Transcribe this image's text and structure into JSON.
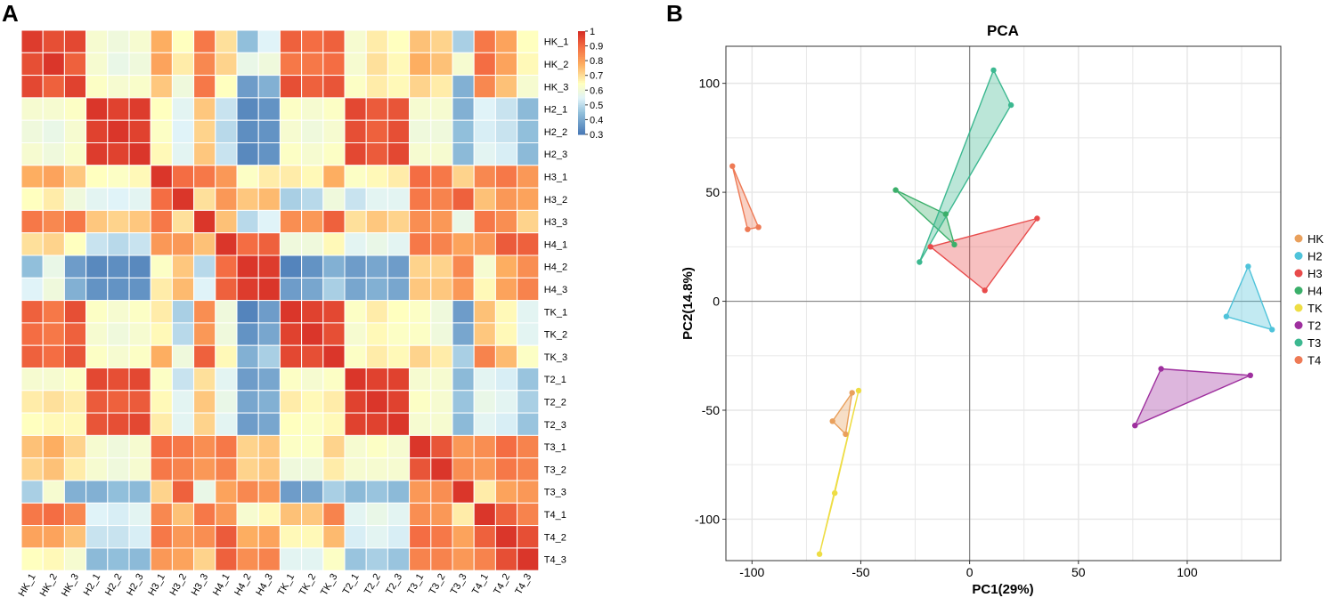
{
  "chart_data": [
    {
      "panel": "A",
      "type": "heatmap",
      "title": "",
      "labels": [
        "HK_1",
        "HK_2",
        "HK_3",
        "H2_1",
        "H2_2",
        "H2_3",
        "H3_1",
        "H3_2",
        "H3_3",
        "H4_1",
        "H4_2",
        "H4_3",
        "TK_1",
        "TK_2",
        "TK_3",
        "T2_1",
        "T2_2",
        "T2_3",
        "T3_1",
        "T3_2",
        "T3_3",
        "T4_1",
        "T4_2",
        "T4_3"
      ],
      "colorbar": {
        "ticks": [
          "1",
          "0.9",
          "0.8",
          "0.7",
          "0.6",
          "0.5",
          "0.4",
          "0.3"
        ],
        "range": [
          0.3,
          1
        ]
      },
      "matrix": [
        [
          0.98,
          0.95,
          0.96,
          0.62,
          0.6,
          0.62,
          0.78,
          0.65,
          0.88,
          0.7,
          0.45,
          0.55,
          0.92,
          0.9,
          0.92,
          0.62,
          0.68,
          0.65,
          0.75,
          0.72,
          0.48,
          0.88,
          0.8,
          0.65
        ],
        [
          0.95,
          0.99,
          0.92,
          0.62,
          0.58,
          0.6,
          0.8,
          0.68,
          0.85,
          0.72,
          0.58,
          0.6,
          0.88,
          0.88,
          0.9,
          0.62,
          0.7,
          0.66,
          0.78,
          0.75,
          0.62,
          0.9,
          0.8,
          0.66
        ],
        [
          0.96,
          0.92,
          0.97,
          0.64,
          0.62,
          0.63,
          0.74,
          0.6,
          0.88,
          0.65,
          0.38,
          0.42,
          0.95,
          0.92,
          0.94,
          0.64,
          0.68,
          0.66,
          0.72,
          0.68,
          0.42,
          0.85,
          0.75,
          0.62
        ],
        [
          0.62,
          0.62,
          0.64,
          0.99,
          0.97,
          0.98,
          0.65,
          0.56,
          0.74,
          0.52,
          0.34,
          0.36,
          0.64,
          0.62,
          0.64,
          0.96,
          0.93,
          0.94,
          0.62,
          0.62,
          0.42,
          0.55,
          0.52,
          0.44
        ],
        [
          0.6,
          0.58,
          0.62,
          0.97,
          0.99,
          0.97,
          0.64,
          0.55,
          0.72,
          0.5,
          0.35,
          0.36,
          0.62,
          0.6,
          0.62,
          0.95,
          0.92,
          0.95,
          0.6,
          0.6,
          0.45,
          0.54,
          0.52,
          0.45
        ],
        [
          0.62,
          0.6,
          0.63,
          0.98,
          0.97,
          0.99,
          0.66,
          0.56,
          0.74,
          0.52,
          0.34,
          0.36,
          0.64,
          0.62,
          0.64,
          0.96,
          0.93,
          0.96,
          0.62,
          0.62,
          0.44,
          0.56,
          0.54,
          0.44
        ],
        [
          0.78,
          0.8,
          0.74,
          0.65,
          0.64,
          0.66,
          0.99,
          0.9,
          0.88,
          0.82,
          0.64,
          0.68,
          0.68,
          0.66,
          0.78,
          0.64,
          0.66,
          0.68,
          0.9,
          0.88,
          0.72,
          0.85,
          0.88,
          0.82
        ],
        [
          0.65,
          0.68,
          0.6,
          0.56,
          0.55,
          0.56,
          0.9,
          0.99,
          0.7,
          0.82,
          0.74,
          0.76,
          0.48,
          0.5,
          0.6,
          0.52,
          0.56,
          0.56,
          0.88,
          0.86,
          0.92,
          0.75,
          0.82,
          0.8
        ],
        [
          0.88,
          0.85,
          0.88,
          0.74,
          0.72,
          0.74,
          0.88,
          0.7,
          0.99,
          0.75,
          0.5,
          0.55,
          0.84,
          0.82,
          0.92,
          0.7,
          0.74,
          0.72,
          0.84,
          0.82,
          0.58,
          0.88,
          0.84,
          0.72
        ],
        [
          0.7,
          0.72,
          0.65,
          0.52,
          0.5,
          0.52,
          0.82,
          0.82,
          0.75,
          0.99,
          0.9,
          0.92,
          0.6,
          0.6,
          0.66,
          0.56,
          0.58,
          0.56,
          0.88,
          0.86,
          0.8,
          0.82,
          0.93,
          0.92
        ],
        [
          0.45,
          0.58,
          0.38,
          0.34,
          0.35,
          0.34,
          0.64,
          0.74,
          0.5,
          0.9,
          0.99,
          0.98,
          0.33,
          0.36,
          0.42,
          0.38,
          0.4,
          0.38,
          0.72,
          0.72,
          0.85,
          0.62,
          0.78,
          0.84
        ],
        [
          0.55,
          0.6,
          0.42,
          0.36,
          0.36,
          0.36,
          0.68,
          0.76,
          0.55,
          0.92,
          0.98,
          0.99,
          0.38,
          0.4,
          0.48,
          0.4,
          0.42,
          0.4,
          0.74,
          0.74,
          0.82,
          0.66,
          0.8,
          0.86
        ],
        [
          0.92,
          0.88,
          0.95,
          0.64,
          0.62,
          0.64,
          0.68,
          0.48,
          0.84,
          0.6,
          0.33,
          0.38,
          0.99,
          0.97,
          0.96,
          0.64,
          0.68,
          0.65,
          0.64,
          0.6,
          0.38,
          0.75,
          0.66,
          0.56
        ],
        [
          0.9,
          0.88,
          0.92,
          0.62,
          0.6,
          0.62,
          0.66,
          0.5,
          0.82,
          0.6,
          0.36,
          0.4,
          0.97,
          0.99,
          0.95,
          0.62,
          0.66,
          0.64,
          0.64,
          0.6,
          0.4,
          0.74,
          0.66,
          0.56
        ],
        [
          0.92,
          0.9,
          0.94,
          0.64,
          0.62,
          0.64,
          0.78,
          0.6,
          0.92,
          0.66,
          0.42,
          0.48,
          0.96,
          0.95,
          0.99,
          0.64,
          0.68,
          0.66,
          0.72,
          0.68,
          0.48,
          0.86,
          0.76,
          0.64
        ],
        [
          0.62,
          0.62,
          0.64,
          0.96,
          0.95,
          0.96,
          0.64,
          0.52,
          0.7,
          0.56,
          0.38,
          0.4,
          0.64,
          0.62,
          0.64,
          0.99,
          0.97,
          0.97,
          0.62,
          0.62,
          0.44,
          0.56,
          0.54,
          0.46
        ],
        [
          0.68,
          0.7,
          0.68,
          0.93,
          0.92,
          0.93,
          0.66,
          0.56,
          0.74,
          0.58,
          0.4,
          0.42,
          0.68,
          0.66,
          0.68,
          0.97,
          0.99,
          0.97,
          0.64,
          0.62,
          0.46,
          0.58,
          0.56,
          0.48
        ],
        [
          0.65,
          0.66,
          0.66,
          0.94,
          0.95,
          0.96,
          0.68,
          0.56,
          0.72,
          0.56,
          0.38,
          0.4,
          0.65,
          0.64,
          0.66,
          0.97,
          0.97,
          0.99,
          0.62,
          0.62,
          0.44,
          0.56,
          0.54,
          0.46
        ],
        [
          0.75,
          0.78,
          0.72,
          0.62,
          0.6,
          0.62,
          0.9,
          0.88,
          0.84,
          0.88,
          0.72,
          0.74,
          0.64,
          0.64,
          0.72,
          0.62,
          0.64,
          0.62,
          0.99,
          0.94,
          0.82,
          0.84,
          0.9,
          0.86
        ],
        [
          0.72,
          0.75,
          0.68,
          0.62,
          0.6,
          0.62,
          0.88,
          0.86,
          0.82,
          0.86,
          0.72,
          0.74,
          0.6,
          0.6,
          0.68,
          0.62,
          0.62,
          0.62,
          0.94,
          0.99,
          0.84,
          0.82,
          0.88,
          0.86
        ],
        [
          0.48,
          0.62,
          0.42,
          0.42,
          0.45,
          0.44,
          0.72,
          0.92,
          0.58,
          0.8,
          0.85,
          0.82,
          0.38,
          0.4,
          0.48,
          0.44,
          0.46,
          0.44,
          0.82,
          0.84,
          0.99,
          0.68,
          0.8,
          0.82
        ],
        [
          0.88,
          0.9,
          0.85,
          0.55,
          0.54,
          0.56,
          0.85,
          0.75,
          0.88,
          0.82,
          0.62,
          0.66,
          0.75,
          0.74,
          0.86,
          0.56,
          0.58,
          0.56,
          0.84,
          0.82,
          0.68,
          0.99,
          0.92,
          0.86
        ],
        [
          0.8,
          0.8,
          0.75,
          0.52,
          0.52,
          0.54,
          0.88,
          0.82,
          0.84,
          0.93,
          0.78,
          0.8,
          0.66,
          0.66,
          0.76,
          0.54,
          0.56,
          0.54,
          0.9,
          0.88,
          0.8,
          0.92,
          0.99,
          0.95
        ],
        [
          0.65,
          0.66,
          0.62,
          0.44,
          0.45,
          0.44,
          0.82,
          0.8,
          0.72,
          0.92,
          0.84,
          0.86,
          0.56,
          0.56,
          0.64,
          0.46,
          0.48,
          0.46,
          0.86,
          0.86,
          0.82,
          0.86,
          0.95,
          0.99
        ]
      ]
    },
    {
      "panel": "B",
      "type": "scatter",
      "title": "PCA",
      "xlabel": "PC1(29%)",
      "ylabel": "PC2(14.8%)",
      "xlim": [
        -112,
        143
      ],
      "ylim": [
        -119,
        117
      ],
      "xticks": [
        -100,
        -50,
        0,
        50,
        100
      ],
      "yticks": [
        100,
        50,
        0,
        -50,
        -100
      ],
      "xtick_labels": [
        "-100",
        "-50",
        "0",
        "50",
        "100"
      ],
      "ytick_labels": [
        "100",
        "50",
        "0",
        "-50",
        "-100"
      ],
      "grid": true,
      "legend_position": "right",
      "series": [
        {
          "name": "HK",
          "color": "#E9A05C",
          "points": [
            [
              -54,
              -42
            ],
            [
              -63,
              -55
            ],
            [
              -57,
              -61
            ]
          ]
        },
        {
          "name": "H2",
          "color": "#4FC3DA",
          "points": [
            [
              128,
              16
            ],
            [
              139,
              -13
            ],
            [
              118,
              -7
            ]
          ]
        },
        {
          "name": "H3",
          "color": "#E84B4B",
          "points": [
            [
              -18,
              25
            ],
            [
              31,
              38
            ],
            [
              7,
              5
            ]
          ]
        },
        {
          "name": "H4",
          "color": "#3BAF6A",
          "points": [
            [
              -34,
              51
            ],
            [
              -11,
              40
            ],
            [
              -7,
              26
            ]
          ]
        },
        {
          "name": "TK",
          "color": "#EEDD44",
          "points": [
            [
              -51,
              -41
            ],
            [
              -62,
              -88
            ],
            [
              -69,
              -116
            ]
          ]
        },
        {
          "name": "T2",
          "color": "#9E2F9E",
          "points": [
            [
              88,
              -31
            ],
            [
              129,
              -34
            ],
            [
              76,
              -57
            ]
          ]
        },
        {
          "name": "T3",
          "color": "#3CB890",
          "points": [
            [
              11,
              106
            ],
            [
              19,
              90
            ],
            [
              -23,
              18
            ]
          ]
        },
        {
          "name": "T4",
          "color": "#EE7A55",
          "points": [
            [
              -109,
              62
            ],
            [
              -97,
              34
            ],
            [
              -102,
              33
            ]
          ]
        }
      ]
    }
  ],
  "panels": {
    "a_letter": "A",
    "b_letter": "B"
  }
}
